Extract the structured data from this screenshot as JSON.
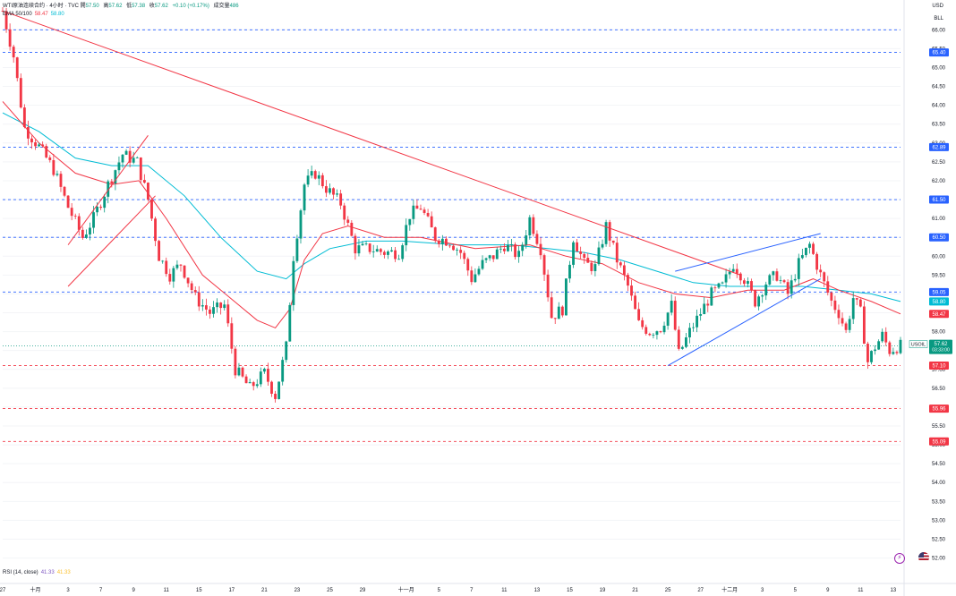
{
  "header": {
    "title": "WTI原油连续合约 · 4小时 · TVC",
    "open_label": "開",
    "open": "57.50",
    "high_label": "高",
    "high": "57.62",
    "low_label": "低",
    "low": "57.38",
    "close_label": "收",
    "close": "57.62",
    "change": "+0.10 (+0.17%)",
    "volume_label": "成交量",
    "volume": "486"
  },
  "ema": {
    "label": "EMA 50/100",
    "v1": "58.47",
    "v2": "58.80"
  },
  "rsi": {
    "label": "RSI (14, close)",
    "v1": "41.33",
    "v2": "41.33"
  },
  "corner": {
    "currency": "USD",
    "scale": "BLL"
  },
  "symbol": {
    "name": "USOIL",
    "price": "57.62",
    "countdown": "03:33:00"
  },
  "colors": {
    "up": "#089981",
    "down": "#f23645",
    "ema50": "#f23645",
    "ema100": "#00bcd4",
    "support": "#f23645",
    "resistance": "#2962ff",
    "trend": "#f23645",
    "channel": "#2962ff"
  },
  "chart_data": {
    "type": "candlestick",
    "title": "WTI原油连续合约 · 4小时 · TVC",
    "ylim": [
      51.8,
      66.6
    ],
    "y_ticks": [
      "52.00",
      "52.50",
      "53.00",
      "53.50",
      "54.00",
      "54.50",
      "55.00",
      "55.50",
      "56.00",
      "56.50",
      "57.00",
      "57.50",
      "58.00",
      "58.50",
      "59.00",
      "59.50",
      "60.00",
      "60.50",
      "61.00",
      "61.50",
      "62.00",
      "62.50",
      "63.00",
      "63.50",
      "64.00",
      "64.50",
      "65.00",
      "65.50",
      "66.00"
    ],
    "x_ticks": [
      {
        "label": "27",
        "i": 0
      },
      {
        "label": "十月",
        "i": 18
      },
      {
        "label": "3",
        "i": 36
      },
      {
        "label": "7",
        "i": 54
      },
      {
        "label": "9",
        "i": 72
      },
      {
        "label": "11",
        "i": 90
      },
      {
        "label": "15",
        "i": 108
      },
      {
        "label": "17",
        "i": 126
      },
      {
        "label": "21",
        "i": 144
      },
      {
        "label": "23",
        "i": 162
      },
      {
        "label": "25",
        "i": 180
      },
      {
        "label": "29",
        "i": 198
      },
      {
        "label": "十一月",
        "i": 222
      },
      {
        "label": "5",
        "i": 240
      },
      {
        "label": "7",
        "i": 258
      },
      {
        "label": "11",
        "i": 276
      },
      {
        "label": "13",
        "i": 294
      },
      {
        "label": "15",
        "i": 312
      },
      {
        "label": "19",
        "i": 330
      },
      {
        "label": "21",
        "i": 348
      },
      {
        "label": "25",
        "i": 366
      },
      {
        "label": "27",
        "i": 384
      },
      {
        "label": "十二月",
        "i": 400
      },
      {
        "label": "3",
        "i": 418
      },
      {
        "label": "5",
        "i": 436
      },
      {
        "label": "9",
        "i": 454
      },
      {
        "label": "11",
        "i": 472
      },
      {
        "label": "13",
        "i": 490
      }
    ],
    "path_points": [
      [
        0,
        66.5
      ],
      [
        6,
        65.3
      ],
      [
        12,
        63.4
      ],
      [
        20,
        62.9
      ],
      [
        28,
        62.3
      ],
      [
        36,
        61.3
      ],
      [
        44,
        60.5
      ],
      [
        50,
        61.0
      ],
      [
        58,
        61.9
      ],
      [
        66,
        62.7
      ],
      [
        74,
        62.5
      ],
      [
        80,
        61.5
      ],
      [
        86,
        60.0
      ],
      [
        92,
        59.5
      ],
      [
        98,
        59.8
      ],
      [
        106,
        58.9
      ],
      [
        114,
        58.5
      ],
      [
        122,
        58.7
      ],
      [
        128,
        57.0
      ],
      [
        136,
        56.5
      ],
      [
        144,
        56.9
      ],
      [
        150,
        56.3
      ],
      [
        156,
        57.6
      ],
      [
        160,
        60.0
      ],
      [
        166,
        61.9
      ],
      [
        172,
        62.2
      ],
      [
        178,
        61.8
      ],
      [
        186,
        61.4
      ],
      [
        194,
        60.2
      ],
      [
        202,
        60.2
      ],
      [
        210,
        60.1
      ],
      [
        218,
        60.1
      ],
      [
        224,
        61.1
      ],
      [
        230,
        61.3
      ],
      [
        238,
        60.5
      ],
      [
        246,
        60.4
      ],
      [
        252,
        60.1
      ],
      [
        258,
        59.4
      ],
      [
        264,
        59.8
      ],
      [
        270,
        60.0
      ],
      [
        276,
        60.3
      ],
      [
        284,
        60.0
      ],
      [
        290,
        61.0
      ],
      [
        296,
        60.2
      ],
      [
        302,
        58.4
      ],
      [
        308,
        58.6
      ],
      [
        314,
        60.5
      ],
      [
        320,
        59.8
      ],
      [
        326,
        59.7
      ],
      [
        332,
        60.8
      ],
      [
        338,
        59.9
      ],
      [
        344,
        59.2
      ],
      [
        350,
        58.2
      ],
      [
        356,
        58.0
      ],
      [
        362,
        58.1
      ],
      [
        368,
        58.7
      ],
      [
        372,
        57.4
      ],
      [
        378,
        58.0
      ],
      [
        384,
        58.5
      ],
      [
        390,
        59.0
      ],
      [
        396,
        59.2
      ],
      [
        402,
        59.8
      ],
      [
        408,
        59.4
      ],
      [
        414,
        58.8
      ],
      [
        420,
        59.3
      ],
      [
        426,
        59.5
      ],
      [
        432,
        59.0
      ],
      [
        438,
        59.8
      ],
      [
        444,
        60.3
      ],
      [
        450,
        59.5
      ],
      [
        456,
        58.8
      ],
      [
        460,
        58.5
      ],
      [
        464,
        58.0
      ],
      [
        468,
        58.9
      ],
      [
        472,
        58.5
      ],
      [
        476,
        57.2
      ],
      [
        480,
        57.6
      ],
      [
        484,
        57.9
      ],
      [
        488,
        57.5
      ],
      [
        493,
        57.62
      ]
    ],
    "ema50": [
      [
        0,
        64.1
      ],
      [
        20,
        63.0
      ],
      [
        40,
        62.2
      ],
      [
        60,
        61.9
      ],
      [
        75,
        62.0
      ],
      [
        90,
        61.0
      ],
      [
        110,
        59.5
      ],
      [
        125,
        58.9
      ],
      [
        140,
        58.3
      ],
      [
        150,
        58.1
      ],
      [
        158,
        58.6
      ],
      [
        166,
        59.9
      ],
      [
        176,
        60.6
      ],
      [
        190,
        60.8
      ],
      [
        210,
        60.5
      ],
      [
        230,
        60.5
      ],
      [
        260,
        60.2
      ],
      [
        290,
        60.3
      ],
      [
        310,
        60.0
      ],
      [
        330,
        59.8
      ],
      [
        350,
        59.3
      ],
      [
        370,
        59.0
      ],
      [
        390,
        58.9
      ],
      [
        410,
        59.1
      ],
      [
        430,
        59.1
      ],
      [
        446,
        59.4
      ],
      [
        460,
        59.1
      ],
      [
        478,
        58.8
      ],
      [
        494,
        58.47
      ]
    ],
    "ema100": [
      [
        0,
        63.8
      ],
      [
        20,
        63.3
      ],
      [
        40,
        62.6
      ],
      [
        60,
        62.4
      ],
      [
        80,
        62.4
      ],
      [
        100,
        61.6
      ],
      [
        120,
        60.5
      ],
      [
        140,
        59.6
      ],
      [
        156,
        59.4
      ],
      [
        166,
        59.8
      ],
      [
        180,
        60.2
      ],
      [
        200,
        60.4
      ],
      [
        220,
        60.4
      ],
      [
        250,
        60.3
      ],
      [
        280,
        60.3
      ],
      [
        300,
        60.2
      ],
      [
        320,
        60.1
      ],
      [
        340,
        59.9
      ],
      [
        360,
        59.6
      ],
      [
        380,
        59.3
      ],
      [
        400,
        59.2
      ],
      [
        420,
        59.2
      ],
      [
        440,
        59.2
      ],
      [
        460,
        59.1
      ],
      [
        478,
        59.0
      ],
      [
        494,
        58.8
      ]
    ],
    "levels": [
      {
        "value": 66.0,
        "color": "resistance",
        "label": ""
      },
      {
        "value": 65.4,
        "color": "resistance",
        "label": "65.40"
      },
      {
        "value": 62.89,
        "color": "resistance",
        "label": "62.89"
      },
      {
        "value": 61.5,
        "color": "resistance",
        "label": "61.50"
      },
      {
        "value": 60.5,
        "color": "resistance",
        "label": "60.50"
      },
      {
        "value": 59.05,
        "color": "resistance",
        "label": "59.05"
      },
      {
        "value": 57.1,
        "color": "support",
        "label": "57.10"
      },
      {
        "value": 55.96,
        "color": "support",
        "label": "55.96"
      },
      {
        "value": 55.09,
        "color": "support",
        "label": "55.09"
      }
    ],
    "price_labels": [
      {
        "value": 58.8,
        "color": "ema100",
        "label": "58.80"
      },
      {
        "value": 58.47,
        "color": "ema50",
        "label": "58.47"
      }
    ],
    "trend_lines": [
      {
        "from": [
          0,
          66.5
        ],
        "to": [
          406,
          59.5
        ],
        "color": "trend"
      },
      {
        "from": [
          36,
          60.3
        ],
        "to": [
          80,
          63.2
        ],
        "color": "trend"
      },
      {
        "from": [
          36,
          59.2
        ],
        "to": [
          84,
          61.6
        ],
        "color": "trend"
      },
      {
        "from": [
          370,
          59.6
        ],
        "to": [
          450,
          60.6
        ],
        "color": "channel"
      },
      {
        "from": [
          366,
          57.1
        ],
        "to": [
          450,
          59.4
        ],
        "color": "channel"
      }
    ]
  }
}
